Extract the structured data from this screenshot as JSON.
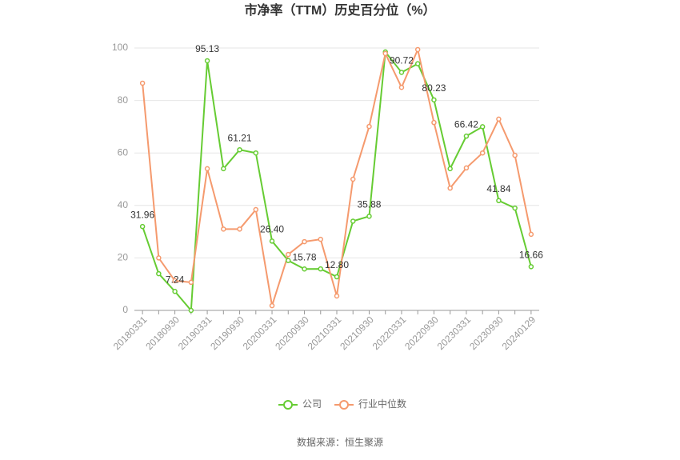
{
  "chart_data": {
    "type": "line",
    "title": "市净率（TTM）历史百分位（%）",
    "categories": [
      "20180331",
      null,
      "20180930",
      null,
      "20190331",
      null,
      "20190930",
      null,
      "20200331",
      null,
      "20200930",
      null,
      "20210331",
      null,
      "20210930",
      null,
      "20220331",
      null,
      "20220930",
      null,
      "20230331",
      null,
      "20230930",
      null,
      "20240129"
    ],
    "series": [
      {
        "name": "公司",
        "color": "#66cc33",
        "values": [
          31.96,
          14,
          7.24,
          0,
          95.13,
          54,
          61.21,
          60,
          26.4,
          19,
          15.78,
          15.8,
          12.8,
          34,
          35.88,
          98.5,
          90.72,
          94,
          80.23,
          54,
          66.42,
          70,
          41.84,
          39,
          16.66
        ],
        "value_labels": [
          "31.96",
          null,
          "7.24",
          null,
          "95.13",
          null,
          "61.21",
          null,
          "26.40",
          null,
          "15.78",
          null,
          "12.80",
          null,
          "35.88",
          null,
          "90.72",
          null,
          "80.23",
          null,
          "66.42",
          null,
          "41.84",
          null,
          "16.66"
        ]
      },
      {
        "name": "行业中位数",
        "color": "#f59a6e",
        "values": [
          86.6,
          20,
          11.3,
          10.7,
          54,
          31,
          31,
          38.4,
          1.8,
          21.3,
          26.2,
          27.1,
          5.5,
          50,
          70.1,
          97.9,
          85,
          99.4,
          71.6,
          46.6,
          54.3,
          60,
          72.9,
          59.1,
          29
        ]
      }
    ],
    "ylim": [
      0,
      100
    ],
    "yticks": [
      0,
      20,
      40,
      60,
      80,
      100
    ],
    "grid": true,
    "source": "数据来源：恒生聚源"
  }
}
